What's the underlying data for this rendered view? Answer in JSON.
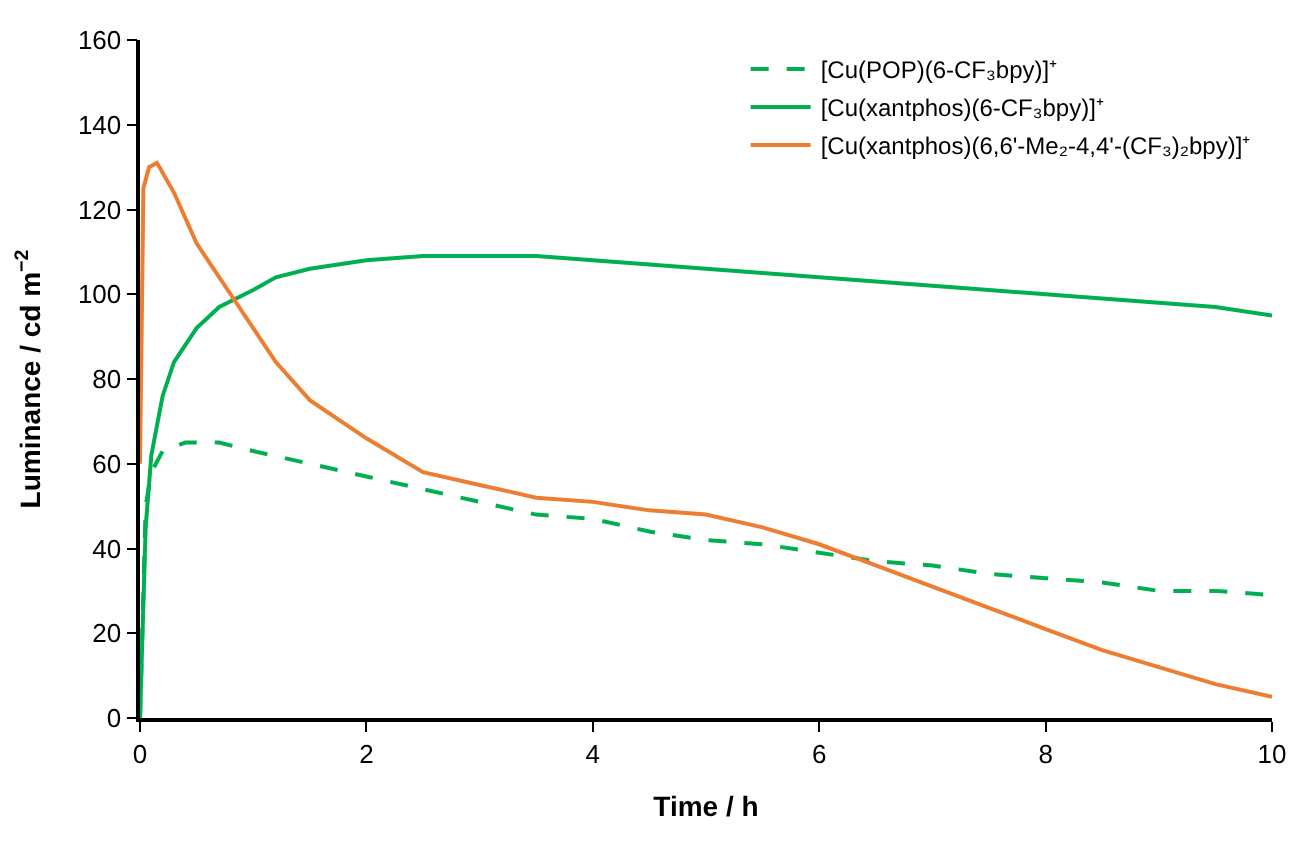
{
  "chart_data": {
    "type": "line",
    "xlabel": "Time / h",
    "ylabel": "Luminance / cd m$^{−2}$",
    "xlim": [
      0,
      10
    ],
    "xticks": [
      0,
      2,
      4,
      6,
      8,
      10
    ],
    "ylim": [
      0,
      160
    ],
    "yticks": [
      0,
      20,
      40,
      60,
      80,
      100,
      120,
      140,
      160
    ],
    "legend": "top right",
    "marker": "none",
    "series": [
      {
        "name": "[Cu(POP)(6-CF₃bpy)]⁺",
        "color": "#00b050",
        "line_style": "dashed",
        "x": [
          0,
          0.05,
          0.1,
          0.2,
          0.4,
          0.7,
          1,
          1.5,
          2,
          2.5,
          3,
          3.5,
          4,
          4.5,
          5,
          5.5,
          6,
          6.5,
          7,
          7.5,
          8,
          8.5,
          9,
          9.5,
          10
        ],
        "values": [
          0,
          50,
          58,
          63,
          65,
          65,
          63,
          60,
          57,
          54,
          51,
          48,
          47,
          44,
          42,
          41,
          39,
          37,
          36,
          34,
          33,
          32,
          30,
          30,
          29
        ]
      },
      {
        "name": "[Cu(xantphos)(6-CF₃bpy)]⁺",
        "color": "#00b050",
        "line_style": "solid",
        "x": [
          0,
          0.05,
          0.1,
          0.2,
          0.3,
          0.5,
          0.7,
          1,
          1.2,
          1.5,
          2,
          2.5,
          3,
          3.5,
          4,
          4.5,
          5,
          5.5,
          6,
          6.5,
          7,
          7.5,
          8,
          8.5,
          9,
          9.5,
          10
        ],
        "values": [
          0,
          45,
          62,
          76,
          84,
          92,
          97,
          101,
          104,
          106,
          108,
          109,
          109,
          109,
          108,
          107,
          106,
          105,
          104,
          103,
          102,
          101,
          100,
          99,
          98,
          97,
          95
        ]
      },
      {
        "name": "[Cu(xantphos)(6,6'-Me₂-4,4'-(CF₃)₂bpy)]⁺",
        "color": "#ed7d31",
        "line_style": "solid",
        "x": [
          0,
          0.03,
          0.08,
          0.15,
          0.3,
          0.5,
          0.8,
          1,
          1.2,
          1.5,
          2,
          2.5,
          3,
          3.5,
          4,
          4.5,
          5,
          5.5,
          6,
          6.5,
          7,
          7.5,
          8,
          8.5,
          9,
          9.5,
          10
        ],
        "values": [
          60,
          125,
          130,
          131,
          124,
          112,
          100,
          92,
          84,
          75,
          66,
          58,
          55,
          52,
          51,
          49,
          48,
          45,
          41,
          36,
          31,
          26,
          21,
          16,
          12,
          8,
          5
        ]
      }
    ]
  }
}
